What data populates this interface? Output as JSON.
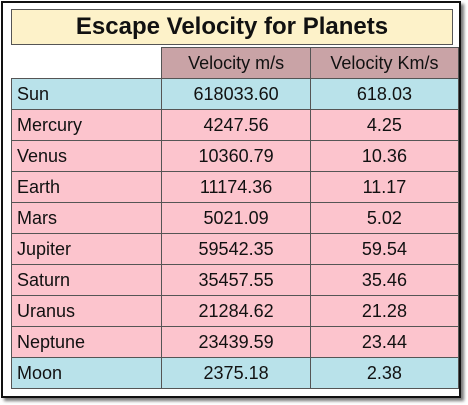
{
  "title": "Escape Velocity for Planets",
  "table": {
    "header": [
      "Velocity m/s",
      "Velocity Km/s"
    ],
    "rows": [
      [
        "Sun",
        "618033.60",
        "618.03"
      ],
      [
        "Mercury",
        "4247.56",
        "4.25"
      ],
      [
        "Venus",
        "10360.79",
        "10.36"
      ],
      [
        "Earth",
        "11174.36",
        "11.17"
      ],
      [
        "Mars",
        "5021.09",
        "5.02"
      ],
      [
        "Jupiter",
        "59542.35",
        "59.54"
      ],
      [
        "Saturn",
        "35457.55",
        "35.46"
      ],
      [
        "Uranus",
        "21284.62",
        "21.28"
      ],
      [
        "Neptune",
        "23439.59",
        "23.44"
      ],
      [
        "Moon",
        "2375.18",
        "2.38"
      ]
    ]
  }
}
